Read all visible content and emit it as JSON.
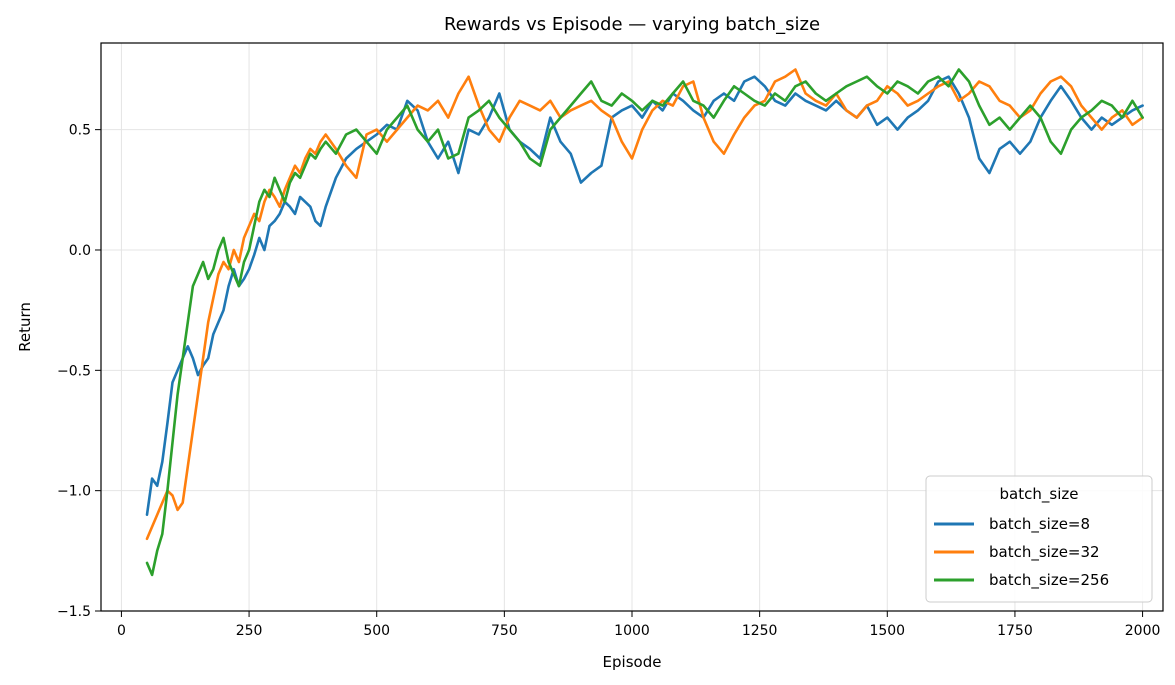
{
  "chart_data": {
    "type": "line",
    "title": "Rewards vs Episode — varying batch_size",
    "xlabel": "Episode",
    "ylabel": "Return",
    "xlim": [
      -40,
      2040
    ],
    "ylim": [
      -1.5,
      0.86
    ],
    "xticks": [
      0,
      250,
      500,
      750,
      1000,
      1250,
      1500,
      1750,
      2000
    ],
    "xtick_labels": [
      "0",
      "250",
      "500",
      "750",
      "1000",
      "1250",
      "1500",
      "1750",
      "2000"
    ],
    "yticks": [
      -1.5,
      -1.0,
      -0.5,
      0.0,
      0.5
    ],
    "ytick_labels": [
      "−1.5",
      "−1.0",
      "−0.5",
      "0.0",
      "0.5"
    ],
    "grid": true,
    "legend": {
      "title": "batch_size",
      "placement": "lower-right"
    },
    "series": [
      {
        "name": "batch_size=8",
        "color": "#1f77b4",
        "x": [
          50,
          60,
          70,
          80,
          90,
          100,
          110,
          120,
          130,
          140,
          150,
          160,
          170,
          180,
          190,
          200,
          210,
          220,
          230,
          240,
          250,
          260,
          270,
          280,
          290,
          300,
          310,
          320,
          330,
          340,
          350,
          360,
          370,
          380,
          390,
          400,
          420,
          440,
          460,
          480,
          500,
          520,
          540,
          560,
          580,
          600,
          620,
          640,
          660,
          680,
          700,
          720,
          740,
          760,
          780,
          800,
          820,
          840,
          860,
          880,
          900,
          920,
          940,
          960,
          980,
          1000,
          1020,
          1040,
          1060,
          1080,
          1100,
          1120,
          1140,
          1160,
          1180,
          1200,
          1220,
          1240,
          1260,
          1280,
          1300,
          1320,
          1340,
          1360,
          1380,
          1400,
          1420,
          1440,
          1460,
          1480,
          1500,
          1520,
          1540,
          1560,
          1580,
          1600,
          1620,
          1640,
          1660,
          1680,
          1700,
          1720,
          1740,
          1760,
          1780,
          1800,
          1820,
          1840,
          1860,
          1880,
          1900,
          1920,
          1940,
          1960,
          1980,
          2000
        ],
        "y": [
          -1.1,
          -0.95,
          -0.98,
          -0.88,
          -0.72,
          -0.55,
          -0.5,
          -0.45,
          -0.4,
          -0.45,
          -0.52,
          -0.48,
          -0.45,
          -0.35,
          -0.3,
          -0.25,
          -0.15,
          -0.08,
          -0.15,
          -0.12,
          -0.08,
          -0.02,
          0.05,
          0.0,
          0.1,
          0.12,
          0.15,
          0.2,
          0.18,
          0.15,
          0.22,
          0.2,
          0.18,
          0.12,
          0.1,
          0.18,
          0.3,
          0.38,
          0.42,
          0.45,
          0.48,
          0.52,
          0.5,
          0.62,
          0.58,
          0.45,
          0.38,
          0.45,
          0.32,
          0.5,
          0.48,
          0.55,
          0.65,
          0.5,
          0.45,
          0.42,
          0.38,
          0.55,
          0.45,
          0.4,
          0.28,
          0.32,
          0.35,
          0.55,
          0.58,
          0.6,
          0.55,
          0.62,
          0.58,
          0.65,
          0.62,
          0.58,
          0.55,
          0.62,
          0.65,
          0.62,
          0.7,
          0.72,
          0.68,
          0.62,
          0.6,
          0.65,
          0.62,
          0.6,
          0.58,
          0.62,
          0.58,
          0.55,
          0.6,
          0.52,
          0.55,
          0.5,
          0.55,
          0.58,
          0.62,
          0.7,
          0.72,
          0.65,
          0.55,
          0.38,
          0.32,
          0.42,
          0.45,
          0.4,
          0.45,
          0.55,
          0.62,
          0.68,
          0.62,
          0.55,
          0.5,
          0.55,
          0.52,
          0.55,
          0.58,
          0.6
        ]
      },
      {
        "name": "batch_size=32",
        "color": "#ff7f0e",
        "x": [
          50,
          60,
          70,
          80,
          90,
          100,
          110,
          120,
          130,
          140,
          150,
          160,
          170,
          180,
          190,
          200,
          210,
          220,
          230,
          240,
          250,
          260,
          270,
          280,
          290,
          300,
          310,
          320,
          330,
          340,
          350,
          360,
          370,
          380,
          390,
          400,
          420,
          440,
          460,
          480,
          500,
          520,
          540,
          560,
          580,
          600,
          620,
          640,
          660,
          680,
          700,
          720,
          740,
          760,
          780,
          800,
          820,
          840,
          860,
          880,
          900,
          920,
          940,
          960,
          980,
          1000,
          1020,
          1040,
          1060,
          1080,
          1100,
          1120,
          1140,
          1160,
          1180,
          1200,
          1220,
          1240,
          1260,
          1280,
          1300,
          1320,
          1340,
          1360,
          1380,
          1400,
          1420,
          1440,
          1460,
          1480,
          1500,
          1520,
          1540,
          1560,
          1580,
          1600,
          1620,
          1640,
          1660,
          1680,
          1700,
          1720,
          1740,
          1760,
          1780,
          1800,
          1820,
          1840,
          1860,
          1880,
          1900,
          1920,
          1940,
          1960,
          1980,
          2000
        ],
        "y": [
          -1.2,
          -1.15,
          -1.1,
          -1.05,
          -1.0,
          -1.02,
          -1.08,
          -1.05,
          -0.9,
          -0.75,
          -0.6,
          -0.45,
          -0.3,
          -0.2,
          -0.1,
          -0.05,
          -0.08,
          0.0,
          -0.05,
          0.05,
          0.1,
          0.15,
          0.12,
          0.2,
          0.25,
          0.22,
          0.18,
          0.25,
          0.3,
          0.35,
          0.32,
          0.38,
          0.42,
          0.4,
          0.45,
          0.48,
          0.42,
          0.35,
          0.3,
          0.48,
          0.5,
          0.45,
          0.5,
          0.55,
          0.6,
          0.58,
          0.62,
          0.55,
          0.65,
          0.72,
          0.6,
          0.5,
          0.45,
          0.55,
          0.62,
          0.6,
          0.58,
          0.62,
          0.55,
          0.58,
          0.6,
          0.62,
          0.58,
          0.55,
          0.45,
          0.38,
          0.5,
          0.58,
          0.62,
          0.6,
          0.68,
          0.7,
          0.55,
          0.45,
          0.4,
          0.48,
          0.55,
          0.6,
          0.62,
          0.7,
          0.72,
          0.75,
          0.65,
          0.62,
          0.6,
          0.65,
          0.58,
          0.55,
          0.6,
          0.62,
          0.68,
          0.65,
          0.6,
          0.62,
          0.65,
          0.68,
          0.7,
          0.62,
          0.65,
          0.7,
          0.68,
          0.62,
          0.6,
          0.55,
          0.58,
          0.65,
          0.7,
          0.72,
          0.68,
          0.6,
          0.55,
          0.5,
          0.55,
          0.58,
          0.52,
          0.55
        ]
      },
      {
        "name": "batch_size=256",
        "color": "#2ca02c",
        "x": [
          50,
          60,
          70,
          80,
          90,
          100,
          110,
          120,
          130,
          140,
          150,
          160,
          170,
          180,
          190,
          200,
          210,
          220,
          230,
          240,
          250,
          260,
          270,
          280,
          290,
          300,
          310,
          320,
          330,
          340,
          350,
          360,
          370,
          380,
          390,
          400,
          420,
          440,
          460,
          480,
          500,
          520,
          540,
          560,
          580,
          600,
          620,
          640,
          660,
          680,
          700,
          720,
          740,
          760,
          780,
          800,
          820,
          840,
          860,
          880,
          900,
          920,
          940,
          960,
          980,
          1000,
          1020,
          1040,
          1060,
          1080,
          1100,
          1120,
          1140,
          1160,
          1180,
          1200,
          1220,
          1240,
          1260,
          1280,
          1300,
          1320,
          1340,
          1360,
          1380,
          1400,
          1420,
          1440,
          1460,
          1480,
          1500,
          1520,
          1540,
          1560,
          1580,
          1600,
          1620,
          1640,
          1660,
          1680,
          1700,
          1720,
          1740,
          1760,
          1780,
          1800,
          1820,
          1840,
          1860,
          1880,
          1900,
          1920,
          1940,
          1960,
          1980,
          2000
        ],
        "y": [
          -1.3,
          -1.35,
          -1.25,
          -1.18,
          -1.0,
          -0.8,
          -0.6,
          -0.45,
          -0.3,
          -0.15,
          -0.1,
          -0.05,
          -0.12,
          -0.08,
          0.0,
          0.05,
          -0.05,
          -0.1,
          -0.15,
          -0.05,
          0.0,
          0.1,
          0.2,
          0.25,
          0.22,
          0.3,
          0.25,
          0.2,
          0.28,
          0.32,
          0.3,
          0.35,
          0.4,
          0.38,
          0.42,
          0.45,
          0.4,
          0.48,
          0.5,
          0.45,
          0.4,
          0.5,
          0.55,
          0.6,
          0.5,
          0.45,
          0.5,
          0.38,
          0.4,
          0.55,
          0.58,
          0.62,
          0.55,
          0.5,
          0.45,
          0.38,
          0.35,
          0.5,
          0.55,
          0.6,
          0.65,
          0.7,
          0.62,
          0.6,
          0.65,
          0.62,
          0.58,
          0.62,
          0.6,
          0.65,
          0.7,
          0.62,
          0.6,
          0.55,
          0.62,
          0.68,
          0.65,
          0.62,
          0.6,
          0.65,
          0.62,
          0.68,
          0.7,
          0.65,
          0.62,
          0.65,
          0.68,
          0.7,
          0.72,
          0.68,
          0.65,
          0.7,
          0.68,
          0.65,
          0.7,
          0.72,
          0.68,
          0.75,
          0.7,
          0.6,
          0.52,
          0.55,
          0.5,
          0.55,
          0.6,
          0.55,
          0.45,
          0.4,
          0.5,
          0.55,
          0.58,
          0.62,
          0.6,
          0.55,
          0.62,
          0.55
        ]
      }
    ]
  }
}
